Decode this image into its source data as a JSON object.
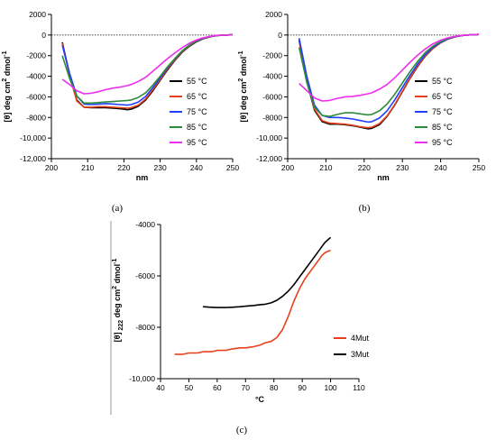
{
  "charts": [
    {
      "id": "a",
      "caption": "(a)",
      "type": "line",
      "xlabel": "nm",
      "ylabel": "[θ] deg cm² dmol⁻¹",
      "ylabel_parts": [
        "[θ] deg cm",
        "2",
        " dmol",
        "-1"
      ],
      "xlim": [
        200,
        250
      ],
      "ylim": [
        -12000,
        2000
      ],
      "xticks": [
        200,
        210,
        220,
        230,
        240,
        250
      ],
      "xtick_labels": [
        "200",
        "210",
        "220",
        "230",
        "240",
        "250"
      ],
      "yticks": [
        2000,
        0,
        -2000,
        -4000,
        -6000,
        -8000,
        -10000,
        -12000
      ],
      "ytick_labels": [
        "2000",
        "0",
        "-2000",
        "-4000",
        "-6000",
        "-8000",
        "-10,000",
        "-12,000"
      ],
      "zero_line": true,
      "legend": "right",
      "series": [
        {
          "name": "55 °C",
          "color": "#000000",
          "x": [
            203,
            205,
            207,
            209,
            211,
            213,
            215,
            217,
            219,
            221,
            222,
            224,
            226,
            228,
            230,
            232,
            234,
            236,
            238,
            240,
            242,
            244,
            246,
            248,
            250
          ],
          "y": [
            -700,
            -3800,
            -6300,
            -7000,
            -7050,
            -7050,
            -7050,
            -7100,
            -7150,
            -7250,
            -7200,
            -6900,
            -6300,
            -5400,
            -4400,
            -3400,
            -2500,
            -1700,
            -1100,
            -650,
            -350,
            -150,
            -40,
            0,
            30
          ]
        },
        {
          "name": "65 °C",
          "color": "#e8401c",
          "x": [
            203,
            205,
            207,
            209,
            211,
            213,
            215,
            217,
            219,
            221,
            222,
            224,
            226,
            228,
            230,
            232,
            234,
            236,
            238,
            240,
            242,
            244,
            246,
            248,
            250
          ],
          "y": [
            -800,
            -3900,
            -6400,
            -7000,
            -7000,
            -6950,
            -6950,
            -7000,
            -7050,
            -7100,
            -7050,
            -6800,
            -6200,
            -5300,
            -4300,
            -3300,
            -2450,
            -1650,
            -1050,
            -600,
            -330,
            -140,
            -40,
            0,
            30
          ]
        },
        {
          "name": "75 °C",
          "color": "#1f3fff",
          "x": [
            203,
            205,
            207,
            209,
            211,
            213,
            215,
            217,
            219,
            221,
            222,
            224,
            226,
            228,
            230,
            232,
            234,
            236,
            238,
            240,
            242,
            244,
            246,
            248,
            250
          ],
          "y": [
            -1000,
            -3700,
            -5900,
            -6700,
            -6750,
            -6700,
            -6650,
            -6700,
            -6750,
            -6800,
            -6750,
            -6500,
            -5950,
            -5100,
            -4150,
            -3200,
            -2350,
            -1600,
            -1000,
            -580,
            -320,
            -130,
            -40,
            0,
            30
          ]
        },
        {
          "name": "85 °C",
          "color": "#2e8b3a",
          "x": [
            203,
            205,
            207,
            209,
            211,
            213,
            215,
            217,
            219,
            221,
            222,
            224,
            226,
            228,
            230,
            232,
            234,
            236,
            238,
            240,
            242,
            244,
            246,
            248,
            250
          ],
          "y": [
            -2000,
            -4200,
            -5900,
            -6600,
            -6600,
            -6550,
            -6500,
            -6450,
            -6400,
            -6350,
            -6300,
            -6050,
            -5600,
            -4850,
            -4000,
            -3100,
            -2300,
            -1550,
            -980,
            -560,
            -300,
            -120,
            -30,
            0,
            30
          ]
        },
        {
          "name": "95 °C",
          "color": "#f02cf0",
          "x": [
            203,
            205,
            207,
            209,
            211,
            213,
            215,
            217,
            219,
            221,
            222,
            224,
            226,
            228,
            230,
            232,
            234,
            236,
            238,
            240,
            242,
            244,
            246,
            248,
            250
          ],
          "y": [
            -4300,
            -4800,
            -5400,
            -5700,
            -5650,
            -5500,
            -5300,
            -5150,
            -5050,
            -4900,
            -4800,
            -4500,
            -4100,
            -3500,
            -2900,
            -2300,
            -1750,
            -1250,
            -800,
            -480,
            -260,
            -110,
            -30,
            0,
            30
          ]
        }
      ]
    },
    {
      "id": "b",
      "caption": "(b)",
      "type": "line",
      "xlabel": "nm",
      "ylabel": "[θ] deg cm² dmol⁻¹",
      "ylabel_parts": [
        "[θ] deg cm",
        "2",
        " dmol",
        "-1"
      ],
      "xlim": [
        200,
        250
      ],
      "ylim": [
        -12000,
        2000
      ],
      "xticks": [
        200,
        210,
        220,
        230,
        240,
        250
      ],
      "xtick_labels": [
        "200",
        "210",
        "220",
        "230",
        "240",
        "250"
      ],
      "yticks": [
        2000,
        0,
        -2000,
        -4000,
        -6000,
        -8000,
        -10000,
        -12000
      ],
      "ytick_labels": [
        "2000",
        "0",
        "-2000",
        "-4000",
        "-6000",
        "-8000",
        "-10,000",
        "-12,000"
      ],
      "zero_line": true,
      "legend": "right",
      "series": [
        {
          "name": "55 °C",
          "color": "#000000",
          "x": [
            203,
            205,
            207,
            209,
            211,
            213,
            215,
            217,
            219,
            221,
            222,
            224,
            226,
            228,
            230,
            232,
            234,
            236,
            238,
            240,
            242,
            244,
            246,
            248,
            250
          ],
          "y": [
            -500,
            -4500,
            -7300,
            -8400,
            -8650,
            -8650,
            -8700,
            -8800,
            -8950,
            -9100,
            -9050,
            -8700,
            -7900,
            -6800,
            -5500,
            -4200,
            -3050,
            -2050,
            -1300,
            -750,
            -380,
            -150,
            -30,
            20,
            60
          ]
        },
        {
          "name": "65 °C",
          "color": "#e8401c",
          "x": [
            203,
            205,
            207,
            209,
            211,
            213,
            215,
            217,
            219,
            221,
            222,
            224,
            226,
            228,
            230,
            232,
            234,
            236,
            238,
            240,
            242,
            244,
            246,
            248,
            250
          ],
          "y": [
            -600,
            -4500,
            -7200,
            -8300,
            -8550,
            -8600,
            -8650,
            -8750,
            -8900,
            -9000,
            -8950,
            -8600,
            -7850,
            -6750,
            -5450,
            -4150,
            -3000,
            -2020,
            -1280,
            -740,
            -370,
            -150,
            -30,
            20,
            60
          ]
        },
        {
          "name": "75 °C",
          "color": "#1f3fff",
          "x": [
            203,
            205,
            207,
            209,
            211,
            213,
            215,
            217,
            219,
            221,
            222,
            224,
            226,
            228,
            230,
            232,
            234,
            236,
            238,
            240,
            242,
            244,
            246,
            248,
            250
          ],
          "y": [
            -300,
            -4000,
            -6800,
            -7800,
            -8000,
            -8000,
            -8050,
            -8150,
            -8300,
            -8450,
            -8400,
            -8050,
            -7350,
            -6300,
            -5100,
            -3900,
            -2800,
            -1900,
            -1200,
            -700,
            -350,
            -140,
            -30,
            20,
            60
          ]
        },
        {
          "name": "85 °C",
          "color": "#2e8b3a",
          "x": [
            203,
            205,
            207,
            209,
            211,
            213,
            215,
            217,
            219,
            221,
            222,
            224,
            226,
            228,
            230,
            232,
            234,
            236,
            238,
            240,
            242,
            244,
            246,
            248,
            250
          ],
          "y": [
            -1200,
            -4600,
            -7000,
            -7800,
            -7900,
            -7700,
            -7550,
            -7550,
            -7650,
            -7750,
            -7700,
            -7350,
            -6700,
            -5750,
            -4650,
            -3550,
            -2550,
            -1700,
            -1080,
            -630,
            -320,
            -130,
            -30,
            20,
            60
          ]
        },
        {
          "name": "95 °C",
          "color": "#f02cf0",
          "x": [
            203,
            205,
            207,
            209,
            211,
            213,
            215,
            217,
            219,
            221,
            222,
            224,
            226,
            228,
            230,
            232,
            234,
            236,
            238,
            240,
            242,
            244,
            246,
            248,
            250
          ],
          "y": [
            -4700,
            -5400,
            -6100,
            -6400,
            -6350,
            -6150,
            -6000,
            -5950,
            -5850,
            -5700,
            -5600,
            -5250,
            -4800,
            -4150,
            -3400,
            -2650,
            -1950,
            -1350,
            -850,
            -500,
            -260,
            -110,
            -30,
            20,
            60
          ]
        }
      ]
    },
    {
      "id": "c",
      "caption": "(c)",
      "type": "line",
      "xlabel": "°C",
      "ylabel": "[θ] 222 deg cm² dmol⁻¹",
      "ylabel_parts": [
        "[θ]",
        "222",
        "deg cm",
        "2",
        " dmol",
        "-1"
      ],
      "xlim": [
        40,
        110
      ],
      "ylim": [
        -10000,
        -4000
      ],
      "xticks": [
        40,
        50,
        60,
        70,
        80,
        90,
        100,
        110
      ],
      "xtick_labels": [
        "40",
        "50",
        "60",
        "70",
        "80",
        "90",
        "100",
        "110"
      ],
      "yticks": [
        -4000,
        -6000,
        -8000,
        -10000
      ],
      "ytick_labels": [
        "-4000",
        "-6000",
        "-8000",
        "-10,000"
      ],
      "zero_line": false,
      "legend": "bottom-right",
      "series": [
        {
          "name": "4Mut",
          "color": "#e8401c",
          "x": [
            45,
            48,
            50,
            53,
            55,
            58,
            60,
            63,
            65,
            68,
            70,
            73,
            75,
            77,
            79,
            81,
            83,
            85,
            87,
            89,
            91,
            93,
            95,
            97,
            98,
            99,
            100
          ],
          "y": [
            -9050,
            -9050,
            -9000,
            -9000,
            -8950,
            -8950,
            -8900,
            -8900,
            -8850,
            -8800,
            -8800,
            -8750,
            -8700,
            -8600,
            -8550,
            -8400,
            -8100,
            -7600,
            -7000,
            -6500,
            -6100,
            -5800,
            -5500,
            -5200,
            -5100,
            -5050,
            -5000
          ]
        },
        {
          "name": "3Mut",
          "color": "#000000",
          "x": [
            55,
            58,
            60,
            63,
            65,
            68,
            70,
            73,
            75,
            77,
            79,
            81,
            83,
            85,
            87,
            89,
            91,
            93,
            95,
            97,
            98,
            99,
            100
          ],
          "y": [
            -7200,
            -7220,
            -7230,
            -7230,
            -7220,
            -7200,
            -7180,
            -7150,
            -7120,
            -7100,
            -7050,
            -6950,
            -6800,
            -6600,
            -6350,
            -6050,
            -5750,
            -5450,
            -5150,
            -4850,
            -4700,
            -4600,
            -4500
          ]
        }
      ]
    }
  ]
}
